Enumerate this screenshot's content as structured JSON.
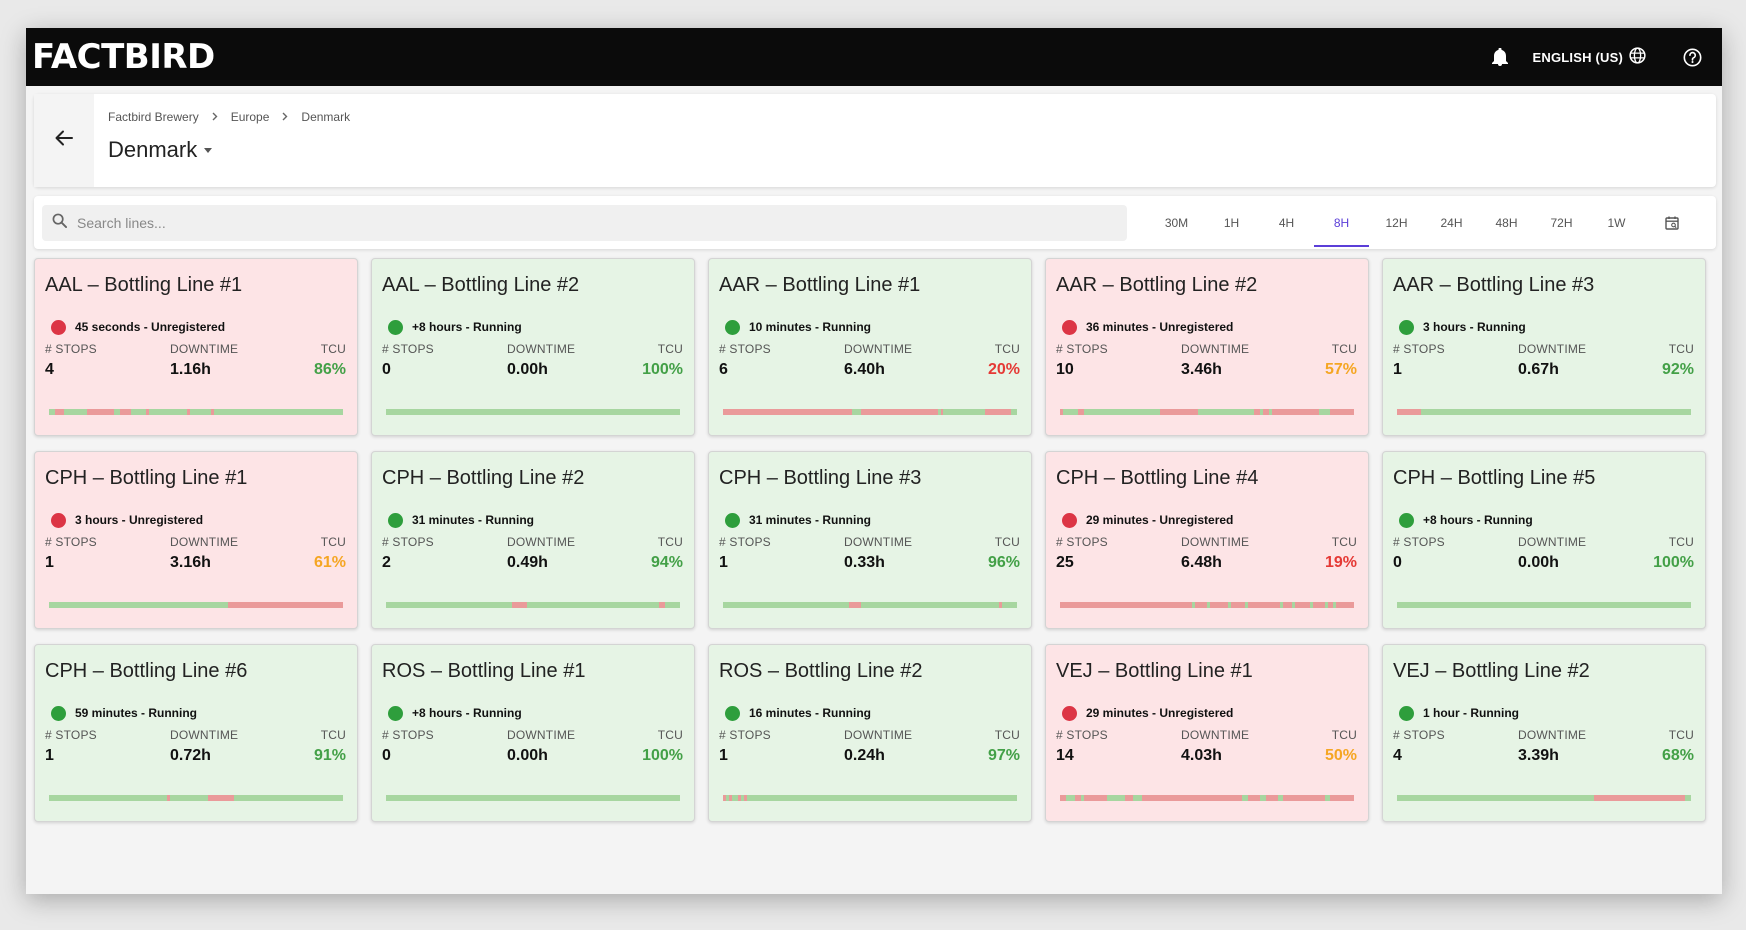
{
  "app": {
    "logo": "FACTBIRD",
    "language": "ENGLISH (US)"
  },
  "breadcrumb": [
    "Factbird Brewery",
    "Europe",
    "Denmark"
  ],
  "page_title": "Denmark",
  "search": {
    "placeholder": "Search lines..."
  },
  "time_ranges": [
    "30M",
    "1H",
    "4H",
    "8H",
    "12H",
    "24H",
    "48H",
    "72H",
    "1W"
  ],
  "active_range": "8H",
  "colors": {
    "running_bg": "#e6f4e5",
    "unregistered_bg": "#fde4e6",
    "accent": "#5b3ed8",
    "tcu_good": "#43a047",
    "tcu_warn": "#f5a623",
    "tcu_bad": "#e53935"
  },
  "labels": {
    "stops": "# STOPS",
    "downtime": "DOWNTIME",
    "tcu": "TCU"
  },
  "lines": [
    {
      "name": "AAL – Bottling Line #1",
      "status": "45 seconds - Unregistered",
      "state": "unregistered",
      "stops": "4",
      "downtime": "1.16h",
      "tcu": "86%",
      "tcu_level": "good",
      "downtime_share_segments": [
        [
          0.02,
          0.03
        ],
        [
          0.13,
          0.09
        ],
        [
          0.24,
          0.04
        ],
        [
          0.33,
          0.01
        ],
        [
          0.47,
          0.01
        ],
        [
          0.55,
          0.01
        ]
      ]
    },
    {
      "name": "AAL – Bottling Line #2",
      "status": "+8 hours - Running",
      "state": "running",
      "stops": "0",
      "downtime": "0.00h",
      "tcu": "100%",
      "tcu_level": "good",
      "downtime_share_segments": []
    },
    {
      "name": "AAR – Bottling Line #1",
      "status": "10 minutes - Running",
      "state": "running",
      "stops": "6",
      "downtime": "6.40h",
      "tcu": "20%",
      "tcu_level": "bad",
      "downtime_share_segments": [
        [
          0.0,
          0.44
        ],
        [
          0.47,
          0.26
        ],
        [
          0.74,
          0.01
        ],
        [
          0.89,
          0.09
        ]
      ]
    },
    {
      "name": "AAR – Bottling Line #2",
      "status": "36 minutes - Unregistered",
      "state": "unregistered",
      "stops": "10",
      "downtime": "3.46h",
      "tcu": "57%",
      "tcu_level": "warn",
      "downtime_share_segments": [
        [
          0.0,
          0.01
        ],
        [
          0.06,
          0.02
        ],
        [
          0.34,
          0.01
        ],
        [
          0.35,
          0.12
        ],
        [
          0.66,
          0.02
        ],
        [
          0.69,
          0.02
        ],
        [
          0.72,
          0.16
        ],
        [
          0.92,
          0.08
        ]
      ]
    },
    {
      "name": "AAR – Bottling Line #3",
      "status": "3 hours - Running",
      "state": "running",
      "stops": "1",
      "downtime": "0.67h",
      "tcu": "92%",
      "tcu_level": "good",
      "downtime_share_segments": [
        [
          0.0,
          0.08
        ]
      ]
    },
    {
      "name": "CPH – Bottling Line #1",
      "status": "3 hours - Unregistered",
      "state": "unregistered",
      "stops": "1",
      "downtime": "3.16h",
      "tcu": "61%",
      "tcu_level": "warn",
      "downtime_share_segments": [
        [
          0.61,
          0.39
        ]
      ]
    },
    {
      "name": "CPH – Bottling Line #2",
      "status": "31 minutes - Running",
      "state": "running",
      "stops": "2",
      "downtime": "0.49h",
      "tcu": "94%",
      "tcu_level": "good",
      "downtime_share_segments": [
        [
          0.43,
          0.05
        ],
        [
          0.93,
          0.02
        ]
      ]
    },
    {
      "name": "CPH – Bottling Line #3",
      "status": "31 minutes - Running",
      "state": "running",
      "stops": "1",
      "downtime": "0.33h",
      "tcu": "96%",
      "tcu_level": "good",
      "downtime_share_segments": [
        [
          0.43,
          0.04
        ],
        [
          0.94,
          0.01
        ]
      ]
    },
    {
      "name": "CPH – Bottling Line #4",
      "status": "29 minutes - Unregistered",
      "state": "unregistered",
      "stops": "25",
      "downtime": "6.48h",
      "tcu": "19%",
      "tcu_level": "bad",
      "downtime_share_segments": [
        [
          0.0,
          0.45
        ],
        [
          0.46,
          0.04
        ],
        [
          0.51,
          0.06
        ],
        [
          0.58,
          0.05
        ],
        [
          0.64,
          0.11
        ],
        [
          0.76,
          0.03
        ],
        [
          0.8,
          0.05
        ],
        [
          0.86,
          0.04
        ],
        [
          0.91,
          0.02
        ],
        [
          0.94,
          0.06
        ]
      ]
    },
    {
      "name": "CPH – Bottling Line #5",
      "status": "+8 hours - Running",
      "state": "running",
      "stops": "0",
      "downtime": "0.00h",
      "tcu": "100%",
      "tcu_level": "good",
      "downtime_share_segments": []
    },
    {
      "name": "CPH – Bottling Line #6",
      "status": "59 minutes - Running",
      "state": "running",
      "stops": "1",
      "downtime": "0.72h",
      "tcu": "91%",
      "tcu_level": "good",
      "downtime_share_segments": [
        [
          0.4,
          0.01
        ],
        [
          0.54,
          0.09
        ]
      ]
    },
    {
      "name": "ROS – Bottling Line #1",
      "status": "+8 hours - Running",
      "state": "running",
      "stops": "0",
      "downtime": "0.00h",
      "tcu": "100%",
      "tcu_level": "good",
      "downtime_share_segments": []
    },
    {
      "name": "ROS – Bottling Line #2",
      "status": "16 minutes - Running",
      "state": "running",
      "stops": "1",
      "downtime": "0.24h",
      "tcu": "97%",
      "tcu_level": "good",
      "downtime_share_segments": [
        [
          0.0,
          0.01
        ],
        [
          0.02,
          0.01
        ],
        [
          0.05,
          0.01
        ],
        [
          0.07,
          0.01
        ]
      ]
    },
    {
      "name": "VEJ – Bottling Line #1",
      "status": "29 minutes - Unregistered",
      "state": "unregistered",
      "stops": "14",
      "downtime": "4.03h",
      "tcu": "50%",
      "tcu_level": "warn",
      "downtime_share_segments": [
        [
          0.0,
          0.02
        ],
        [
          0.05,
          0.02
        ],
        [
          0.08,
          0.08
        ],
        [
          0.22,
          0.03
        ],
        [
          0.28,
          0.34
        ],
        [
          0.64,
          0.04
        ],
        [
          0.7,
          0.04
        ],
        [
          0.76,
          0.14
        ],
        [
          0.92,
          0.08
        ]
      ]
    },
    {
      "name": "VEJ – Bottling Line #2",
      "status": "1 hour - Running",
      "state": "running",
      "stops": "4",
      "downtime": "3.39h",
      "tcu": "68%",
      "tcu_level": "good",
      "downtime_share_segments": [
        [
          0.67,
          0.31
        ]
      ]
    }
  ]
}
